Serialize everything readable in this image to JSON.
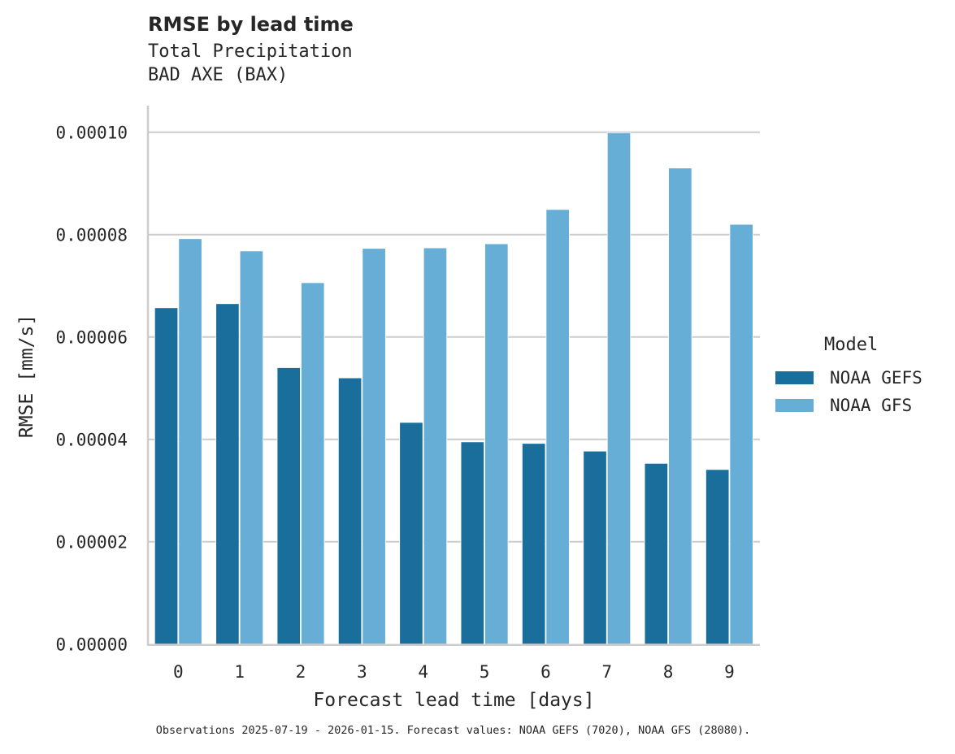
{
  "header": {
    "title": "RMSE by lead time",
    "subtitle_line1": "Total Precipitation",
    "subtitle_line2": "BAD AXE (BAX)"
  },
  "legend": {
    "title": "Model",
    "items": [
      {
        "label": "NOAA GEFS",
        "color": "#1a6e9b"
      },
      {
        "label": "NOAA GFS",
        "color": "#67aed6"
      }
    ]
  },
  "footer": {
    "text": "Observations 2025-07-19 - 2026-01-15. Forecast values: NOAA GEFS (7020), NOAA GFS (28080)."
  },
  "chart_data": {
    "type": "bar",
    "title": "RMSE by lead time",
    "subtitle": [
      "Total Precipitation",
      "BAD AXE (BAX)"
    ],
    "xlabel": "Forecast lead time [days]",
    "ylabel": "RMSE [mm/s]",
    "categories": [
      "0",
      "1",
      "2",
      "3",
      "4",
      "5",
      "6",
      "7",
      "8",
      "9"
    ],
    "series": [
      {
        "name": "NOAA GEFS",
        "color": "#1a6e9b",
        "values": [
          6.57e-05,
          6.65e-05,
          5.4e-05,
          5.2e-05,
          4.33e-05,
          3.95e-05,
          3.92e-05,
          3.77e-05,
          3.53e-05,
          3.41e-05
        ]
      },
      {
        "name": "NOAA GFS",
        "color": "#67aed6",
        "values": [
          7.92e-05,
          7.68e-05,
          7.06e-05,
          7.73e-05,
          7.74e-05,
          7.82e-05,
          8.49e-05,
          9.99e-05,
          9.3e-05,
          8.2e-05
        ]
      }
    ],
    "yticks": [
      "0.00000",
      "0.00002",
      "0.00004",
      "0.00006",
      "0.00008",
      "0.00010"
    ],
    "ylim": [
      0,
      0.000105
    ],
    "grid": "y",
    "legend_position": "right",
    "legend_title": "Model",
    "footer": "Observations 2025-07-19 - 2026-01-15. Forecast values: NOAA GEFS (7020), NOAA GFS (28080)."
  }
}
